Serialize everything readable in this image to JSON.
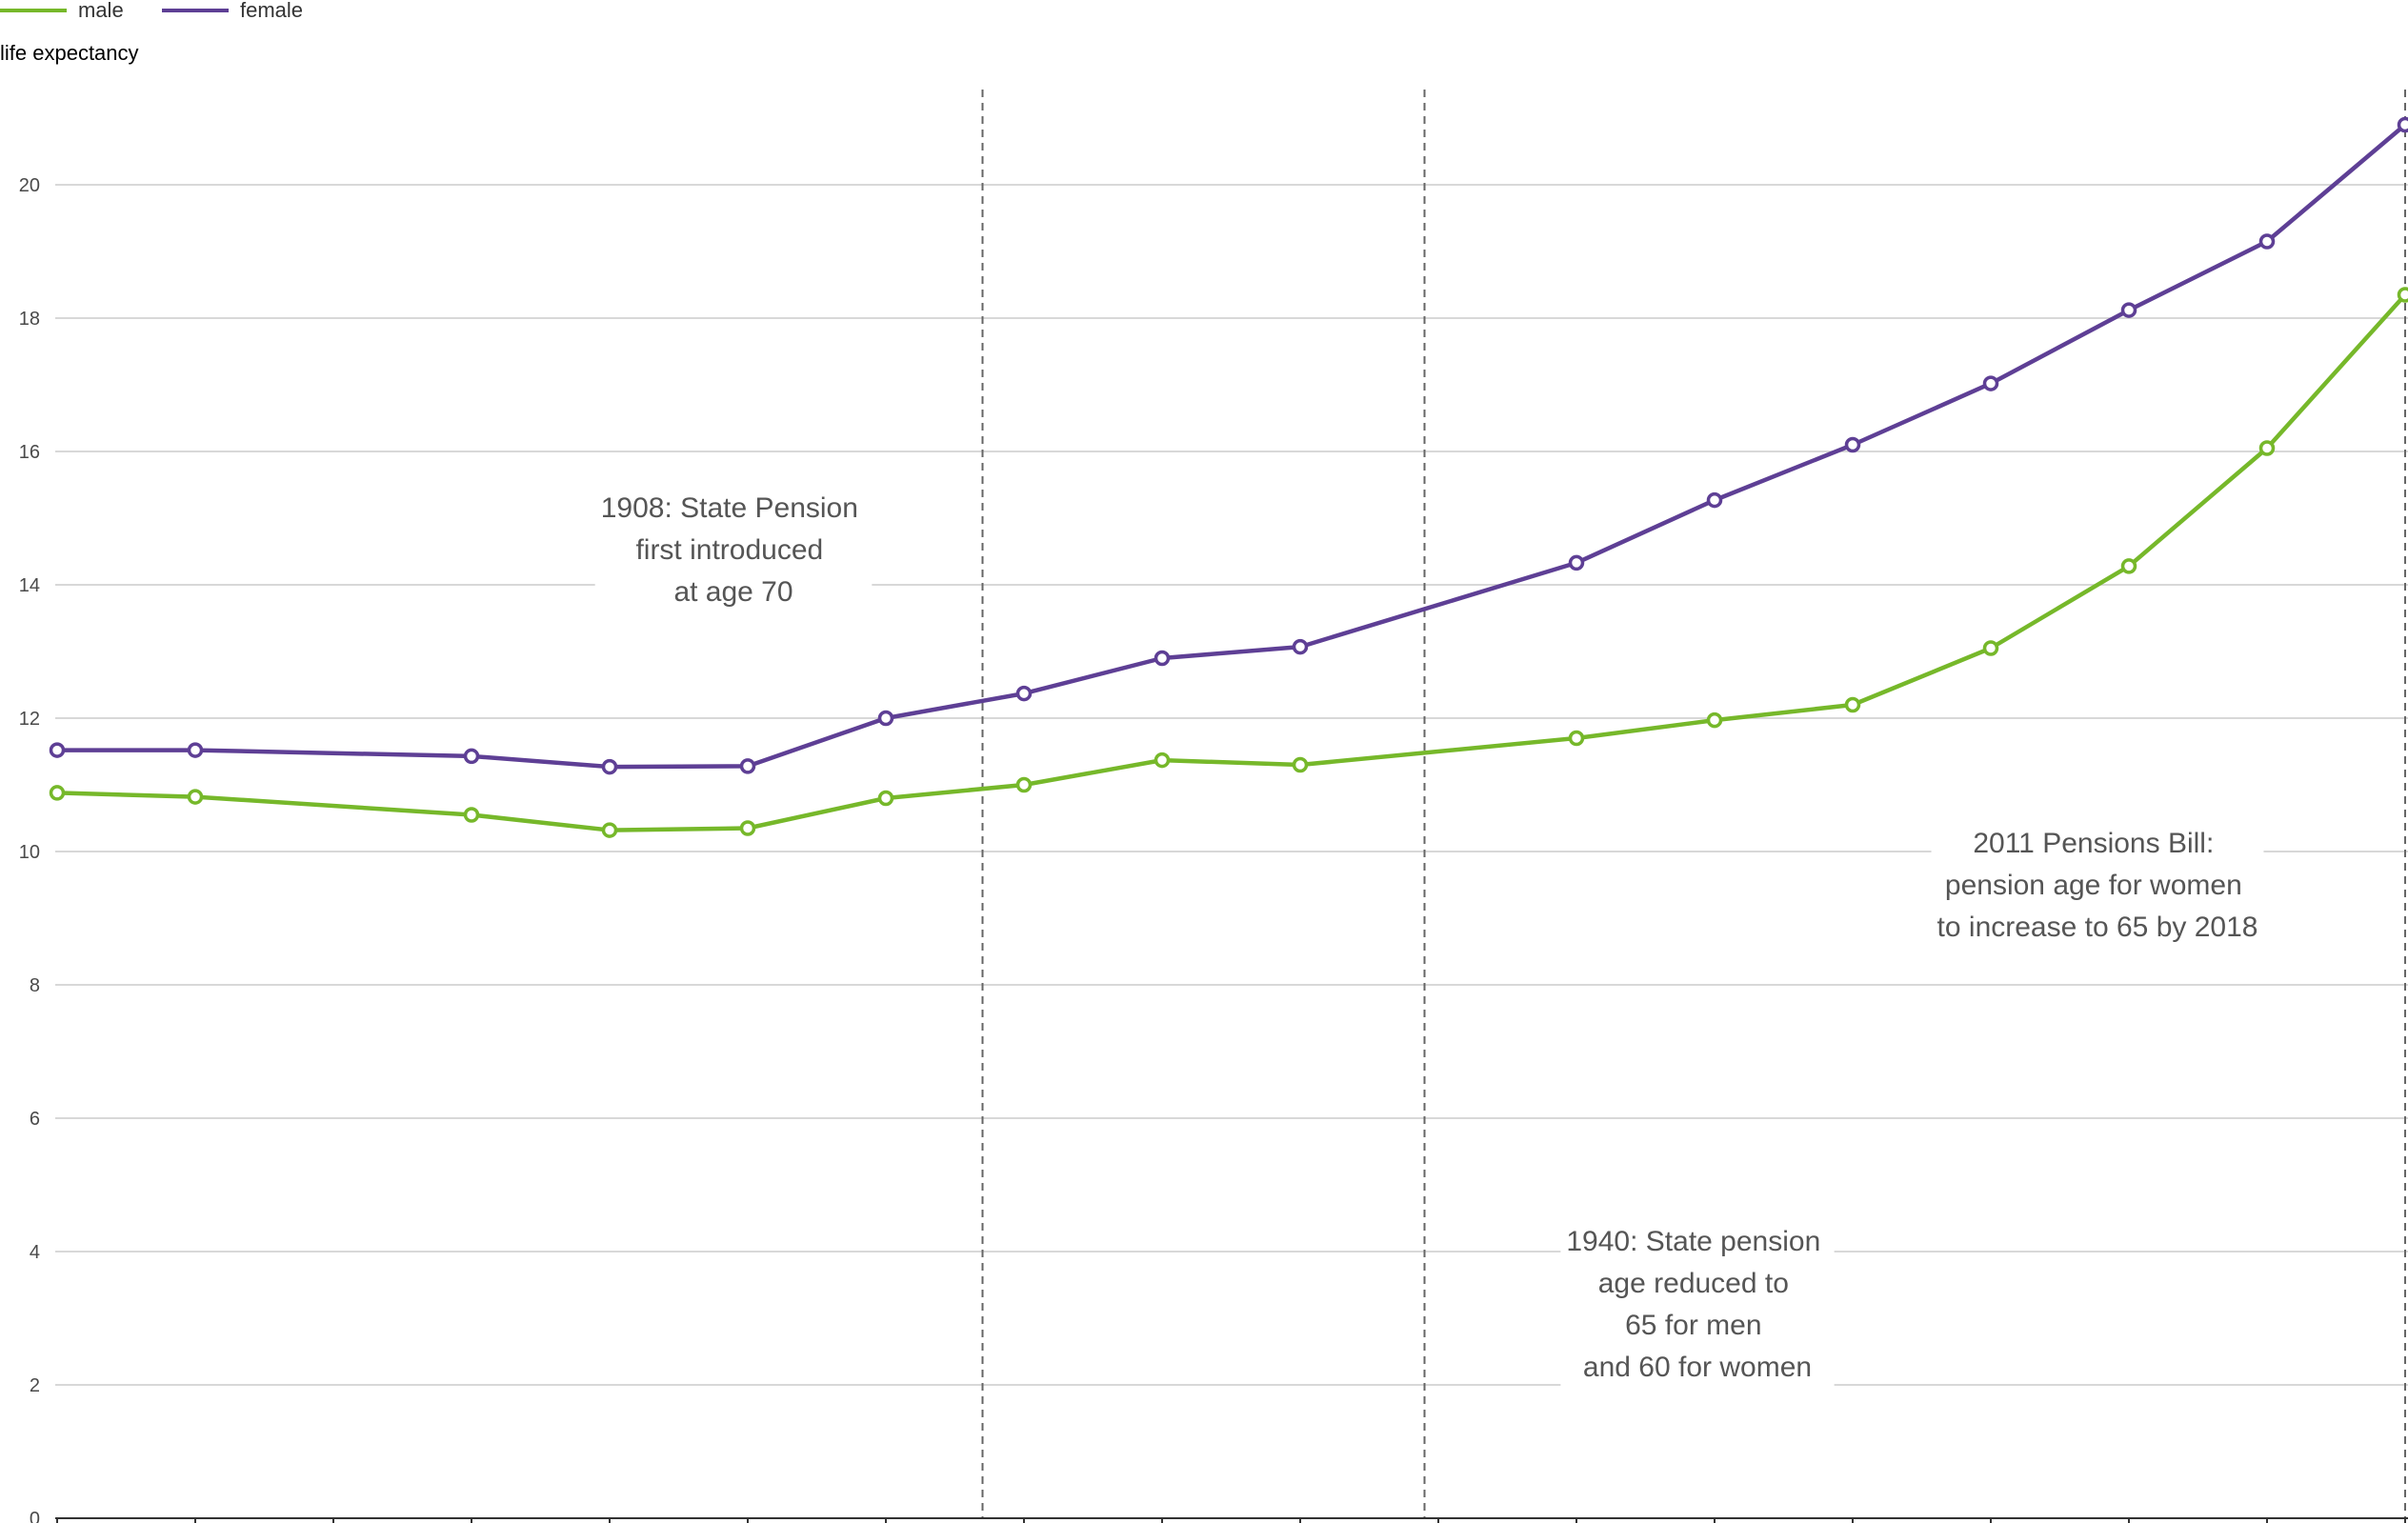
{
  "colors": {
    "male": "#76b82a",
    "female": "#5e3f95"
  },
  "chart_data": {
    "type": "line",
    "title": "",
    "xlabel": "",
    "ylabel": "life expectancy",
    "ylim": [
      0,
      22
    ],
    "yticks": [
      0,
      2,
      4,
      6,
      8,
      10,
      12,
      14,
      16,
      18,
      20
    ],
    "grid": true,
    "legend": "top-left",
    "x_ticks_count": 18,
    "series": [
      {
        "name": "male",
        "color": "#76b82a",
        "points": [
          [
            0,
            10.88
          ],
          [
            1,
            10.82
          ],
          [
            3,
            10.55
          ],
          [
            4,
            10.32
          ],
          [
            5,
            10.35
          ],
          [
            6,
            10.8
          ],
          [
            7,
            11.0
          ],
          [
            8,
            11.37
          ],
          [
            9,
            11.3
          ],
          [
            11,
            11.7
          ],
          [
            12,
            11.97
          ],
          [
            13,
            12.2
          ],
          [
            14,
            13.05
          ],
          [
            15,
            14.28
          ],
          [
            16,
            16.05
          ],
          [
            17,
            18.35
          ]
        ]
      },
      {
        "name": "female",
        "color": "#5e3f95",
        "points": [
          [
            0,
            11.52
          ],
          [
            1,
            11.52
          ],
          [
            3,
            11.43
          ],
          [
            4,
            11.27
          ],
          [
            5,
            11.28
          ],
          [
            6,
            12.0
          ],
          [
            7,
            12.37
          ],
          [
            8,
            12.9
          ],
          [
            9,
            13.07
          ],
          [
            11,
            14.33
          ],
          [
            12,
            15.27
          ],
          [
            13,
            16.1
          ],
          [
            14,
            17.02
          ],
          [
            15,
            18.12
          ],
          [
            16,
            19.15
          ],
          [
            17,
            20.9
          ]
        ]
      }
    ],
    "vertical_markers": [
      6.7,
      9.9,
      17.0
    ],
    "annotations": [
      {
        "lines": [
          "1908: State Pension",
          "first introduced",
          "at age 70"
        ]
      },
      {
        "lines": [
          "1940: State pension",
          "age reduced to",
          "65 for men",
          "and 60 for women"
        ]
      },
      {
        "lines": [
          "2011 Pensions Bill:",
          "pension age for women",
          "to increase to 65 by 2018"
        ]
      }
    ]
  }
}
